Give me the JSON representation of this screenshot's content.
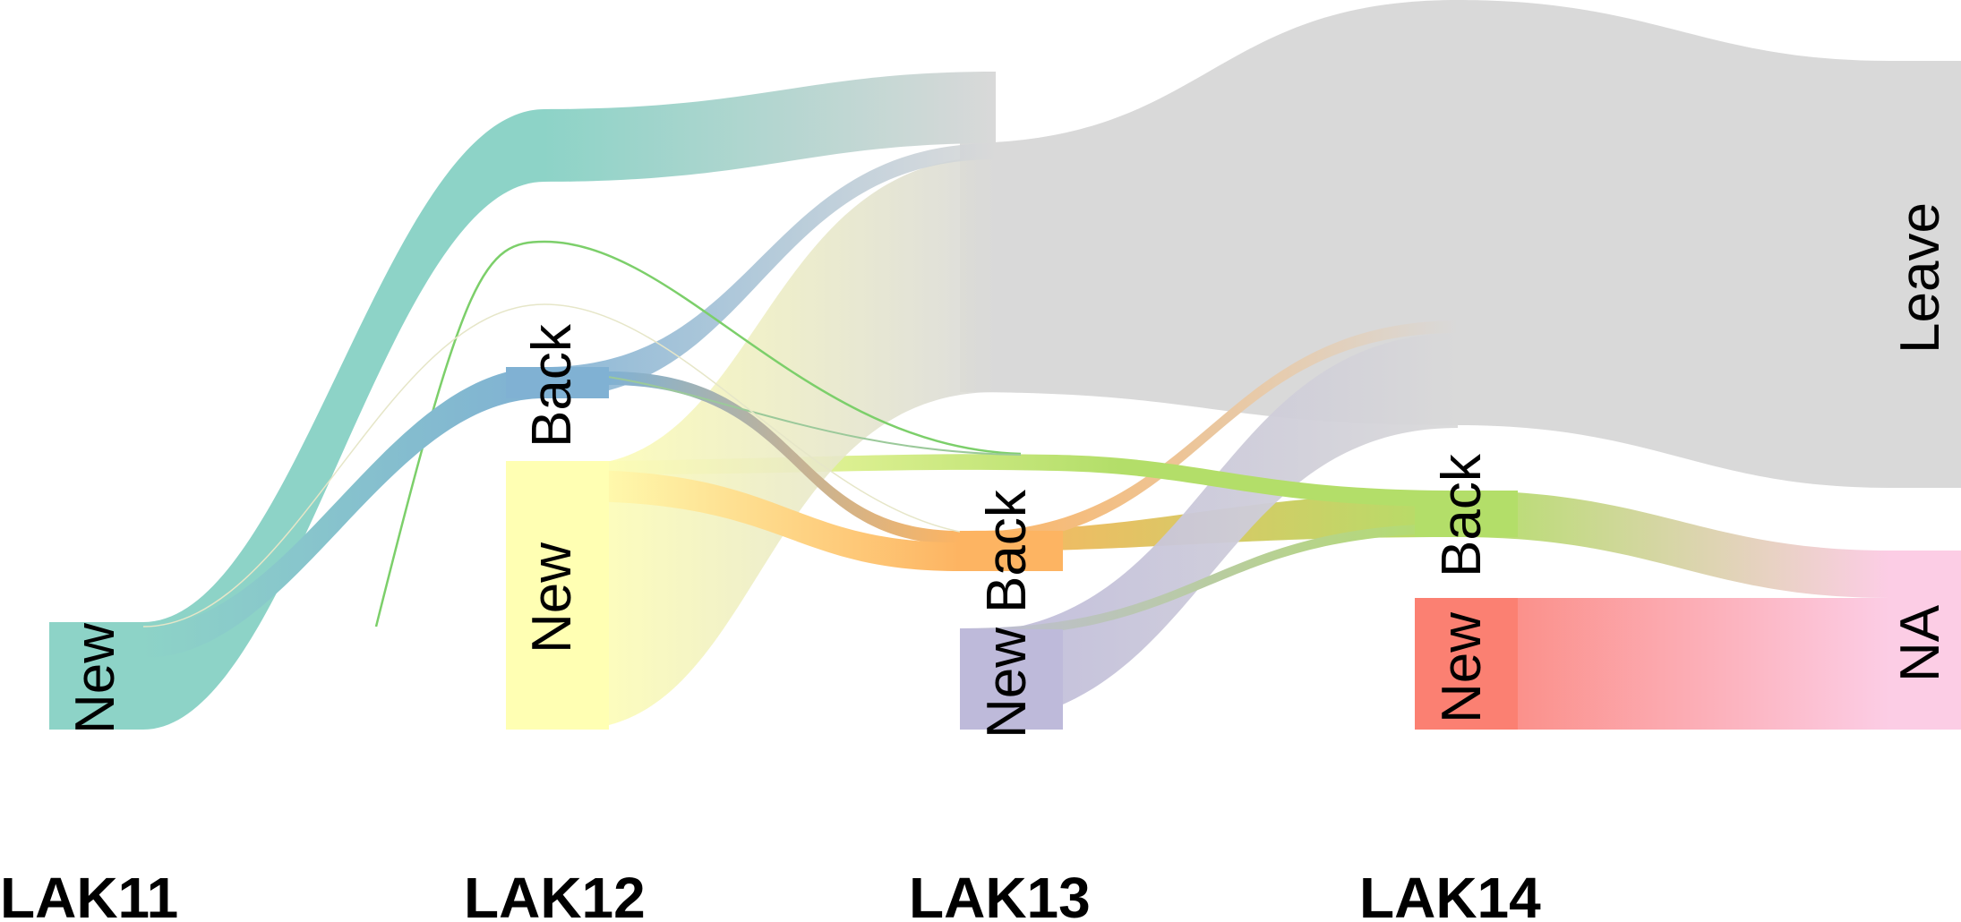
{
  "diagram": {
    "type": "alluvial",
    "stages": [
      "LAK11",
      "LAK12",
      "LAK13",
      "LAK14"
    ],
    "nodes": [
      {
        "id": "s0-new",
        "stage": 0,
        "label": "New",
        "color": "#8dd3c7"
      },
      {
        "id": "s1-back",
        "stage": 1,
        "label": "Back",
        "color": "#80b1d3"
      },
      {
        "id": "s1-new",
        "stage": 1,
        "label": "New",
        "color": "#ffffb3"
      },
      {
        "id": "s2-back",
        "stage": 2,
        "label": "Back",
        "color": "#fdb462"
      },
      {
        "id": "s2-new",
        "stage": 2,
        "label": "New",
        "color": "#bebada"
      },
      {
        "id": "s3-back",
        "stage": 3,
        "label": "Back",
        "color": "#b3de69"
      },
      {
        "id": "s3-new",
        "stage": 3,
        "label": "New",
        "color": "#fb8072"
      },
      {
        "id": "s3-leave",
        "stage": 3,
        "label": "Leave",
        "color": "#d9d9d9"
      },
      {
        "id": "s3-na",
        "stage": 3,
        "label": "NA",
        "color": "#fccde5"
      }
    ],
    "link_colors": {
      "leave": "#d9d9d9",
      "na": "#fccde5"
    }
  }
}
